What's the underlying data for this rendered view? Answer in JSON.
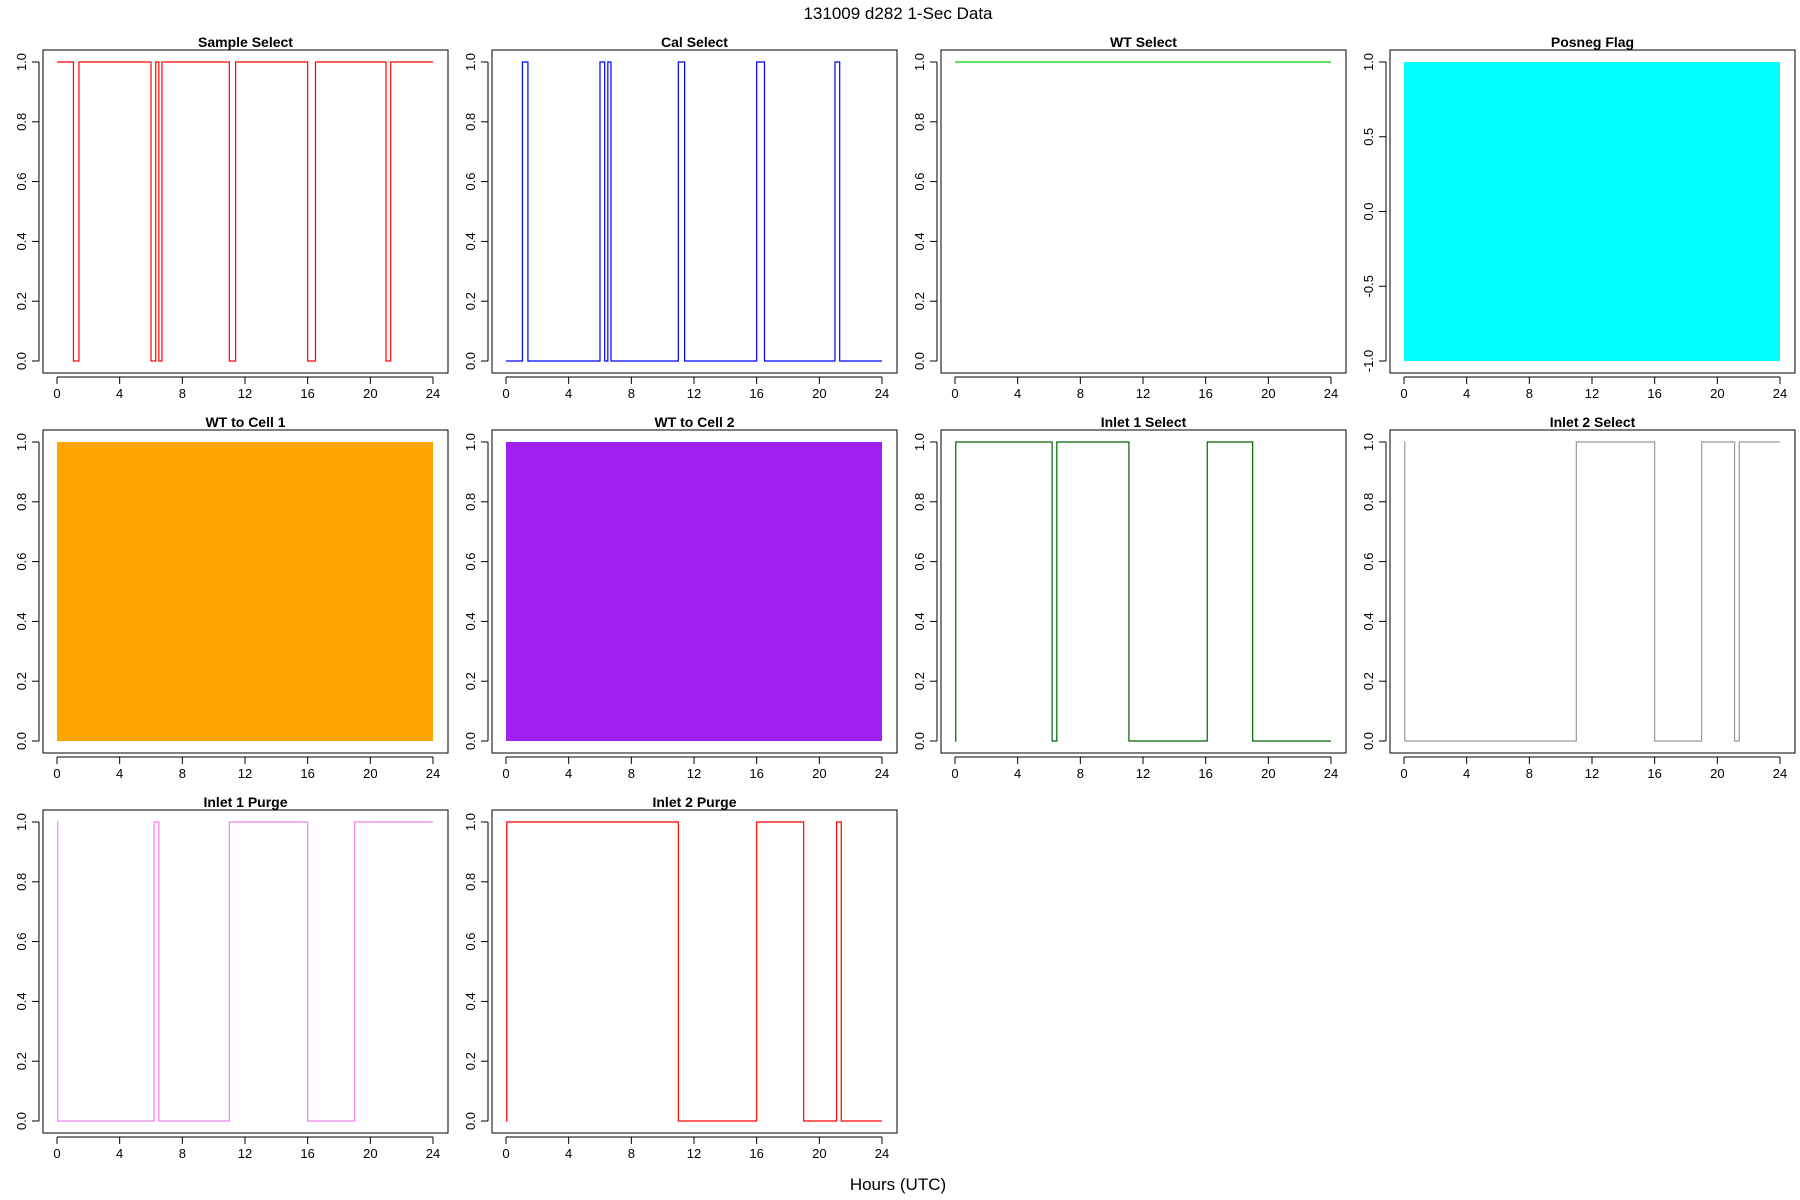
{
  "figure": {
    "title": "131009   d282   1-Sec Data",
    "xlabel": "Hours (UTC)"
  },
  "chart_data": [
    {
      "type": "line",
      "title": "Sample Select",
      "color": "#ff0000",
      "xlim": [
        0,
        24
      ],
      "ylim": [
        0,
        1
      ],
      "xticks": [
        0,
        4,
        8,
        12,
        16,
        20,
        24
      ],
      "yticks": [
        0.0,
        0.2,
        0.4,
        0.6,
        0.8,
        1.0
      ],
      "ytick_labels": [
        "0.0",
        "0.2",
        "0.4",
        "0.6",
        "0.8",
        "1.0"
      ],
      "x": [
        0,
        1.05,
        1.05,
        1.4,
        1.4,
        6.0,
        6.0,
        6.3,
        6.3,
        6.5,
        6.5,
        6.7,
        6.7,
        11.0,
        11.0,
        11.4,
        11.4,
        16.0,
        16.0,
        16.5,
        16.5,
        21.0,
        21.0,
        21.3,
        21.3,
        24
      ],
      "y": [
        1,
        1,
        0,
        0,
        1,
        1,
        0,
        0,
        1,
        1,
        0,
        0,
        1,
        1,
        0,
        0,
        1,
        1,
        0,
        0,
        1,
        1,
        0,
        0,
        1,
        1
      ]
    },
    {
      "type": "line",
      "title": "Cal Select",
      "color": "#0000ff",
      "xlim": [
        0,
        24
      ],
      "ylim": [
        0,
        1
      ],
      "xticks": [
        0,
        4,
        8,
        12,
        16,
        20,
        24
      ],
      "yticks": [
        0.0,
        0.2,
        0.4,
        0.6,
        0.8,
        1.0
      ],
      "ytick_labels": [
        "0.0",
        "0.2",
        "0.4",
        "0.6",
        "0.8",
        "1.0"
      ],
      "x": [
        0,
        1.05,
        1.05,
        1.4,
        1.4,
        6.0,
        6.0,
        6.3,
        6.3,
        6.5,
        6.5,
        6.7,
        6.7,
        11.0,
        11.0,
        11.4,
        11.4,
        16.0,
        16.0,
        16.5,
        16.5,
        21.0,
        21.0,
        21.3,
        21.3,
        24
      ],
      "y": [
        0,
        0,
        1,
        1,
        0,
        0,
        1,
        1,
        0,
        0,
        1,
        1,
        0,
        0,
        1,
        1,
        0,
        0,
        1,
        1,
        0,
        0,
        1,
        1,
        0,
        0
      ]
    },
    {
      "type": "line",
      "title": "WT Select",
      "color": "#00cc00",
      "xlim": [
        0,
        24
      ],
      "ylim": [
        0,
        1
      ],
      "xticks": [
        0,
        4,
        8,
        12,
        16,
        20,
        24
      ],
      "yticks": [
        0.0,
        0.2,
        0.4,
        0.6,
        0.8,
        1.0
      ],
      "ytick_labels": [
        "0.0",
        "0.2",
        "0.4",
        "0.6",
        "0.8",
        "1.0"
      ],
      "x": [
        0,
        24
      ],
      "y": [
        1,
        1
      ]
    },
    {
      "type": "area",
      "title": "Posneg Flag",
      "color": "#00ffff",
      "xlim": [
        0,
        24
      ],
      "ylim": [
        -1,
        1
      ],
      "xticks": [
        0,
        4,
        8,
        12,
        16,
        20,
        24
      ],
      "yticks": [
        -1.0,
        -0.5,
        0.0,
        0.5,
        1.0
      ],
      "ytick_labels": [
        "-1.0",
        "-0.5",
        "0.0",
        "0.5",
        "1.0"
      ],
      "fill_range": [
        -1,
        1
      ]
    },
    {
      "type": "area",
      "title": "WT to Cell 1",
      "color": "#ffa500",
      "xlim": [
        0,
        24
      ],
      "ylim": [
        0,
        1
      ],
      "xticks": [
        0,
        4,
        8,
        12,
        16,
        20,
        24
      ],
      "yticks": [
        0.0,
        0.2,
        0.4,
        0.6,
        0.8,
        1.0
      ],
      "ytick_labels": [
        "0.0",
        "0.2",
        "0.4",
        "0.6",
        "0.8",
        "1.0"
      ],
      "fill_range": [
        0,
        1
      ]
    },
    {
      "type": "area",
      "title": "WT to Cell 2",
      "color": "#a020f0",
      "xlim": [
        0,
        24
      ],
      "ylim": [
        0,
        1
      ],
      "xticks": [
        0,
        4,
        8,
        12,
        16,
        20,
        24
      ],
      "yticks": [
        0.0,
        0.2,
        0.4,
        0.6,
        0.8,
        1.0
      ],
      "ytick_labels": [
        "0.0",
        "0.2",
        "0.4",
        "0.6",
        "0.8",
        "1.0"
      ],
      "fill_range": [
        0,
        1
      ]
    },
    {
      "type": "line",
      "title": "Inlet 1 Select",
      "color": "#006400",
      "xlim": [
        0,
        24
      ],
      "ylim": [
        0,
        1
      ],
      "xticks": [
        0,
        4,
        8,
        12,
        16,
        20,
        24
      ],
      "yticks": [
        0.0,
        0.2,
        0.4,
        0.6,
        0.8,
        1.0
      ],
      "ytick_labels": [
        "0.0",
        "0.2",
        "0.4",
        "0.6",
        "0.8",
        "1.0"
      ],
      "x": [
        0,
        0.05,
        0.05,
        6.2,
        6.2,
        6.5,
        6.5,
        11.1,
        11.1,
        16.1,
        16.1,
        19.0,
        19.0,
        24
      ],
      "y": [
        0,
        0,
        1,
        1,
        0,
        0,
        1,
        1,
        0,
        0,
        1,
        1,
        0,
        0
      ]
    },
    {
      "type": "line",
      "title": "Inlet 2 Select",
      "color": "#999999",
      "xlim": [
        0,
        24
      ],
      "ylim": [
        0,
        1
      ],
      "xticks": [
        0,
        4,
        8,
        12,
        16,
        20,
        24
      ],
      "yticks": [
        0.0,
        0.2,
        0.4,
        0.6,
        0.8,
        1.0
      ],
      "ytick_labels": [
        "0.0",
        "0.2",
        "0.4",
        "0.6",
        "0.8",
        "1.0"
      ],
      "x": [
        0,
        0.05,
        0.05,
        11.0,
        11.0,
        16.0,
        16.0,
        19.0,
        19.0,
        21.1,
        21.1,
        21.4,
        21.4,
        24
      ],
      "y": [
        1,
        1,
        0,
        0,
        1,
        1,
        0,
        0,
        1,
        1,
        0,
        0,
        1,
        1
      ]
    },
    {
      "type": "line",
      "title": "Inlet 1 Purge",
      "color": "#ee82ee",
      "xlim": [
        0,
        24
      ],
      "ylim": [
        0,
        1
      ],
      "xticks": [
        0,
        4,
        8,
        12,
        16,
        20,
        24
      ],
      "yticks": [
        0.0,
        0.2,
        0.4,
        0.6,
        0.8,
        1.0
      ],
      "ytick_labels": [
        "0.0",
        "0.2",
        "0.4",
        "0.6",
        "0.8",
        "1.0"
      ],
      "x": [
        0,
        0.05,
        0.05,
        6.2,
        6.2,
        6.5,
        6.5,
        11.0,
        11.0,
        16.0,
        16.0,
        19.0,
        19.0,
        24
      ],
      "y": [
        1,
        1,
        0,
        0,
        1,
        1,
        0,
        0,
        1,
        1,
        0,
        0,
        1,
        1
      ]
    },
    {
      "type": "line",
      "title": "Inlet 2 Purge",
      "color": "#ff0000",
      "xlim": [
        0,
        24
      ],
      "ylim": [
        0,
        1
      ],
      "xticks": [
        0,
        4,
        8,
        12,
        16,
        20,
        24
      ],
      "yticks": [
        0.0,
        0.2,
        0.4,
        0.6,
        0.8,
        1.0
      ],
      "ytick_labels": [
        "0.0",
        "0.2",
        "0.4",
        "0.6",
        "0.8",
        "1.0"
      ],
      "x": [
        0,
        0.05,
        0.05,
        11.0,
        11.0,
        16.0,
        16.0,
        19.0,
        19.0,
        21.1,
        21.1,
        21.4,
        21.4,
        24
      ],
      "y": [
        0,
        0,
        1,
        1,
        0,
        0,
        1,
        1,
        0,
        0,
        1,
        1,
        0,
        0
      ]
    }
  ]
}
